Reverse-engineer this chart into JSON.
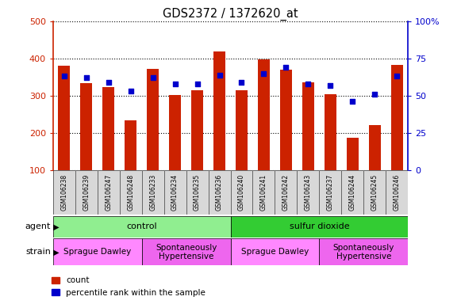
{
  "title": "GDS2372 / 1372620_at",
  "samples": [
    "GSM106238",
    "GSM106239",
    "GSM106247",
    "GSM106248",
    "GSM106233",
    "GSM106234",
    "GSM106235",
    "GSM106236",
    "GSM106240",
    "GSM106241",
    "GSM106242",
    "GSM106243",
    "GSM106237",
    "GSM106244",
    "GSM106245",
    "GSM106246"
  ],
  "counts": [
    380,
    333,
    323,
    235,
    372,
    302,
    315,
    420,
    315,
    398,
    370,
    335,
    305,
    187,
    222,
    382
  ],
  "percentile": [
    63,
    62,
    59,
    53,
    62,
    58,
    58,
    64,
    59,
    65,
    69,
    58,
    57,
    46,
    51,
    63
  ],
  "ylim_left": [
    100,
    500
  ],
  "ylim_right": [
    0,
    100
  ],
  "yticks_left": [
    100,
    200,
    300,
    400,
    500
  ],
  "yticks_right": [
    0,
    25,
    50,
    75,
    100
  ],
  "yticklabels_right": [
    "0",
    "25",
    "50",
    "75",
    "100%"
  ],
  "bar_color": "#cc2200",
  "dot_color": "#0000cc",
  "bar_width": 0.55,
  "agent_groups": [
    {
      "label": "control",
      "start": 0,
      "end": 8,
      "color": "#90ee90"
    },
    {
      "label": "sulfur dioxide",
      "start": 8,
      "end": 16,
      "color": "#33cc33"
    }
  ],
  "strain_groups": [
    {
      "label": "Sprague Dawley",
      "start": 0,
      "end": 4,
      "color": "#ff88ff"
    },
    {
      "label": "Spontaneously\nHypertensive",
      "start": 4,
      "end": 8,
      "color": "#ee66ee"
    },
    {
      "label": "Sprague Dawley",
      "start": 8,
      "end": 12,
      "color": "#ff88ff"
    },
    {
      "label": "Spontaneously\nHypertensive",
      "start": 12,
      "end": 16,
      "color": "#ee66ee"
    }
  ],
  "label_agent": "agent",
  "label_strain": "strain",
  "legend_count": "count",
  "legend_pct": "percentile rank within the sample",
  "fig_width": 5.81,
  "fig_height": 3.84,
  "dpi": 100
}
